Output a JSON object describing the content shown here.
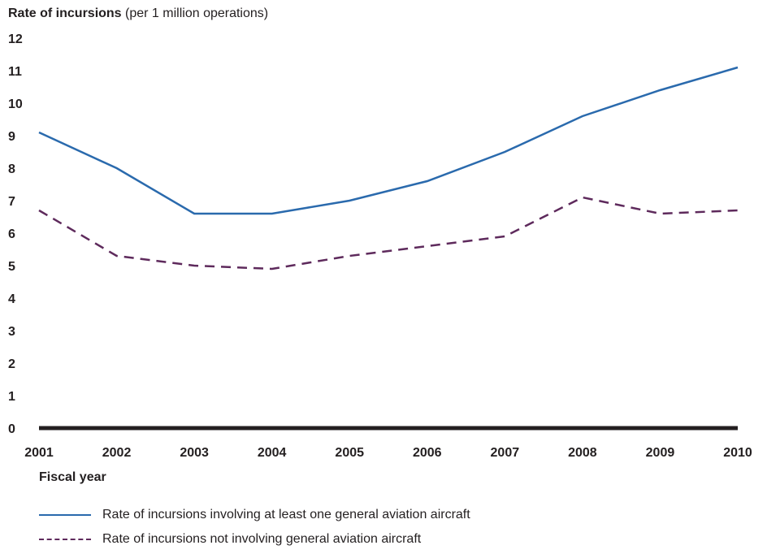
{
  "chart_data": {
    "type": "line",
    "ylabel_title": "Rate of incursions",
    "ylabel_unit": "(per 1 million operations)",
    "xlabel": "Fiscal year",
    "categories": [
      "2001",
      "2002",
      "2003",
      "2004",
      "2005",
      "2006",
      "2007",
      "2008",
      "2009",
      "2010"
    ],
    "ylim": [
      0,
      12
    ],
    "yticks": [
      0,
      1,
      2,
      3,
      4,
      5,
      6,
      7,
      8,
      9,
      10,
      11,
      12
    ],
    "grid": false,
    "legend_position": "bottom-left",
    "series": [
      {
        "name": "Rate of incursions involving at least one general aviation aircraft",
        "values": [
          9.1,
          8.0,
          6.6,
          6.6,
          7.0,
          7.6,
          8.5,
          9.6,
          10.4,
          11.1
        ],
        "color": "#2a6aad",
        "style": "solid"
      },
      {
        "name": "Rate of incursions not involving general aviation aircraft",
        "values": [
          6.7,
          5.3,
          5.0,
          4.9,
          5.3,
          5.6,
          5.9,
          7.1,
          6.6,
          6.7
        ],
        "color": "#5e2a5c",
        "style": "dashed"
      }
    ]
  }
}
